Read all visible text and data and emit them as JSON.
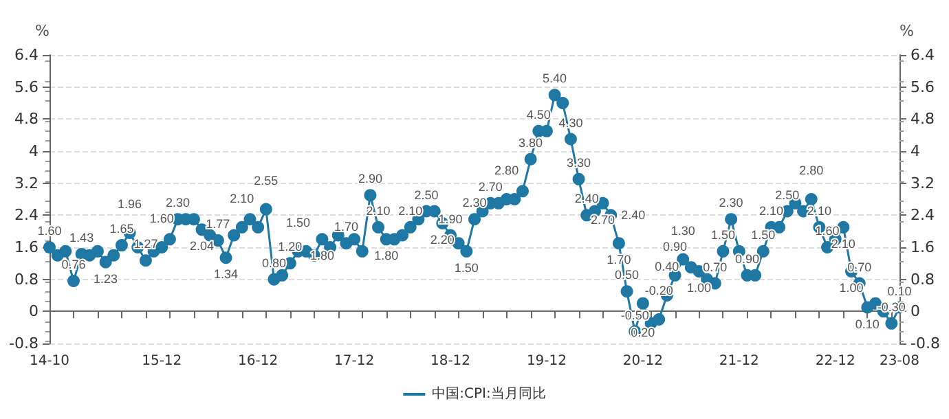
{
  "chart_data": {
    "type": "line",
    "ylabel": "%",
    "y2label": "%",
    "categories": [
      "14-10",
      null,
      null,
      null,
      null,
      null,
      null,
      null,
      null,
      null,
      null,
      null,
      null,
      null,
      "15-12",
      null,
      null,
      null,
      null,
      null,
      null,
      null,
      null,
      null,
      null,
      null,
      "16-12",
      null,
      null,
      null,
      null,
      null,
      null,
      null,
      null,
      null,
      null,
      null,
      "17-12",
      null,
      null,
      null,
      null,
      null,
      null,
      null,
      null,
      null,
      null,
      null,
      "18-12",
      null,
      null,
      null,
      null,
      null,
      null,
      null,
      null,
      null,
      null,
      null,
      "19-12",
      null,
      null,
      null,
      null,
      null,
      null,
      null,
      null,
      null,
      null,
      null,
      "20-12",
      null,
      null,
      null,
      null,
      null,
      null,
      null,
      null,
      null,
      null,
      null,
      "21-12",
      null,
      null,
      null,
      null,
      null,
      null,
      null,
      null,
      null,
      null,
      null,
      "22-12",
      null,
      null,
      null,
      null,
      null,
      null,
      null,
      "23-08"
    ],
    "series": [
      {
        "name": "中国:CPI:当月同比",
        "color": "#1f77a4",
        "values": [
          1.6,
          1.4,
          1.5,
          0.76,
          1.43,
          1.4,
          1.5,
          1.23,
          1.4,
          1.65,
          1.96,
          1.6,
          1.27,
          1.5,
          1.6,
          1.8,
          2.3,
          2.3,
          2.3,
          2.04,
          1.9,
          1.77,
          1.34,
          1.9,
          2.1,
          2.3,
          2.1,
          2.55,
          0.8,
          0.9,
          1.2,
          1.5,
          1.5,
          1.4,
          1.8,
          1.6,
          1.9,
          1.7,
          1.8,
          1.5,
          2.9,
          2.1,
          1.8,
          1.8,
          1.9,
          2.1,
          2.3,
          2.5,
          2.5,
          2.2,
          1.9,
          1.7,
          1.5,
          2.3,
          2.5,
          2.7,
          2.7,
          2.8,
          2.8,
          3.0,
          3.8,
          4.5,
          4.5,
          5.4,
          5.2,
          4.3,
          3.3,
          2.4,
          2.5,
          2.7,
          2.4,
          1.7,
          0.5,
          -0.5,
          0.2,
          -0.3,
          -0.2,
          0.4,
          0.9,
          1.3,
          1.1,
          1.0,
          0.8,
          0.7,
          1.5,
          2.3,
          1.5,
          0.9,
          0.9,
          1.5,
          2.1,
          2.1,
          2.5,
          2.7,
          2.5,
          2.8,
          2.1,
          1.6,
          1.8,
          2.1,
          1.0,
          0.7,
          0.1,
          0.2,
          0.0,
          -0.3,
          0.1
        ],
        "value_labels": [
          "1.60",
          null,
          null,
          "0.76",
          "1.43",
          null,
          null,
          "1.23",
          null,
          "1.65",
          "1.96",
          null,
          "1.27",
          null,
          "1.60",
          null,
          "2.30",
          null,
          null,
          "2.04",
          null,
          "1.77",
          "1.34",
          null,
          "2.10",
          null,
          null,
          "2.55",
          "0.80",
          null,
          "1.20",
          "1.50",
          null,
          null,
          "1.80",
          null,
          null,
          "1.70",
          null,
          null,
          "2.90",
          "2.10",
          "1.80",
          null,
          null,
          "2.10",
          null,
          "2.50",
          null,
          "2.20",
          "1.90",
          null,
          "1.50",
          "2.30",
          null,
          "2.70",
          null,
          "2.80",
          null,
          null,
          "3.80",
          "4.50",
          null,
          "5.40",
          null,
          "4.30",
          "3.30",
          "2.40",
          null,
          "2.70",
          "2.40",
          "1.70",
          "0.50",
          "-0.50",
          "0.20",
          null,
          "-0.20",
          "0.40",
          "0.90",
          "1.30",
          null,
          "1.00",
          null,
          "0.70",
          "1.50",
          "2.30",
          null,
          "0.90",
          null,
          "1.50",
          "2.10",
          null,
          "2.50",
          null,
          null,
          "2.80",
          "2.10",
          "1.60",
          null,
          "2.10",
          "1.00",
          "0.70",
          "0.10",
          null,
          null,
          "-0.30",
          "0.10"
        ]
      }
    ],
    "ylim": [
      -0.8,
      6.4
    ],
    "yticks": [
      -0.8,
      0,
      0.8,
      1.6,
      2.4,
      3.2,
      4,
      4.8,
      5.6,
      6.4
    ],
    "y2lim": [
      -0.8,
      6.4
    ],
    "y2ticks": [
      -0.8,
      0,
      0.8,
      1.6,
      2.4,
      3.2,
      4,
      4.8,
      5.6,
      6.4
    ],
    "grid": "y",
    "legend": "bottom",
    "marker": "circle",
    "line_style": "solid"
  }
}
